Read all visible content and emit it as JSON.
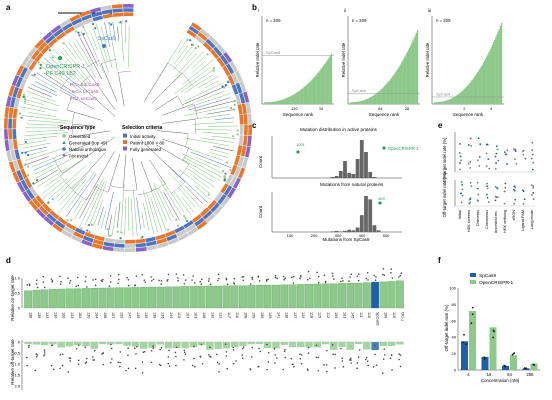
{
  "panel_letters": {
    "a": "a",
    "b": "b",
    "c": "c",
    "d": "d",
    "e": "e",
    "f": "f"
  },
  "tree": {
    "labels": {
      "spcas9": "SpCas9",
      "opencrispr": "OpenCRISPR-1",
      "pf_cas": "PF C49 1B2",
      "pca_sacas9": "PCA sacCas9",
      "sca_brcas9": "SCA brCas9",
      "fca_sacas9": "FCA saCas9"
    },
    "legend_type_title": "Sequence type",
    "legend_types": [
      "Generated",
      "Generated (top 49)",
      "Natural orthologue",
      "Ancestral"
    ],
    "legend_crit_title": "Selection criteria",
    "legend_crit": [
      "Initial activity",
      "Patent 1800 < 80",
      "Fully generated"
    ],
    "colors": {
      "generated": "#8dc98a",
      "top": "#2e9b57",
      "natural": "#3f79c3",
      "ancestral": "#a45fb8",
      "ring_orange": "#e8772e",
      "ring_blue": "#4e75c2",
      "ring_grey": "#c9c9c9",
      "ring_purple": "#8a63c6"
    }
  },
  "panel_b": {
    "ylabel": "Relative Indel rate",
    "xlabel": "Sequence rank",
    "subplots": [
      {
        "roman": "i",
        "n": "n = 209",
        "ref": "SpCas9",
        "ticks": [
          "120",
          "10"
        ],
        "refLevel": 0.55,
        "rise": 0.55
      },
      {
        "roman": "ii",
        "n": "n = 209",
        "ref": "SpCas9",
        "ticks": [
          "64",
          "28"
        ],
        "refLevel": 0.12,
        "rise": 0.82
      },
      {
        "roman": "iii",
        "n": "n = 209",
        "ref": "SpCas9",
        "ticks": [
          "2",
          "4"
        ],
        "refLevel": 0.08,
        "rise": 0.9
      }
    ]
  },
  "panel_c": {
    "top_title": "Mutation distribution in active proteins",
    "top_peak_label": "OpenCRISPR-1",
    "top_marker": "1001",
    "bottom_title": "Mutations from natural proteins",
    "bottom_marker": "403",
    "ylabel": "Count",
    "xlabel": "Mutations from SpCas9",
    "xticks": [
      "100",
      "200",
      "300",
      "400",
      "500"
    ],
    "top_bars": [
      2,
      4,
      14,
      34,
      10,
      8,
      38,
      76,
      52,
      12,
      2
    ],
    "bottom_bars": [
      1,
      2,
      1,
      2,
      4,
      3,
      8,
      30,
      64,
      58,
      12,
      3
    ]
  },
  "panel_e": {
    "ylabel_top": "On-target indel rate (%)",
    "ylabel_bottom": "Off-target indel rate (%)",
    "categories": [
      "Initial",
      "HEK screens",
      "Chimeras",
      "Consensus",
      "Ancestral rec.",
      "HEK ortholog",
      "sRGN",
      "Ligand-PAM",
      "Lang.mode"
    ]
  },
  "panel_d": {
    "ylabel_top": "Relative on-target rate",
    "ylabel_bottom": "Relative off-target rate",
    "labels": [
      "168",
      "139",
      "133",
      "130",
      "100",
      "143",
      "162",
      "120",
      "104",
      "158",
      "157",
      "152",
      "147",
      "146",
      "135",
      "128",
      "126",
      "144",
      "113",
      "107",
      "103",
      "148",
      "132",
      "122",
      "117",
      "116",
      "108",
      "159",
      "155",
      "149",
      "141",
      "138",
      "127",
      "124",
      "118",
      "115",
      "112",
      "105",
      "163",
      "145",
      "111",
      "110",
      "SpCas9",
      "109",
      "115",
      "OC-1"
    ],
    "values": [
      0.86,
      0.9,
      0.92,
      0.94,
      0.95,
      0.96,
      0.97,
      0.98,
      0.99,
      1.0,
      1.01,
      1.02,
      1.02,
      1.03,
      1.04,
      1.05,
      1.05,
      1.06,
      1.07,
      1.08,
      1.08,
      1.09,
      1.1,
      1.1,
      1.11,
      1.12,
      1.12,
      1.13,
      1.14,
      1.15,
      1.15,
      1.16,
      1.17,
      1.18,
      1.19,
      1.2,
      1.21,
      1.22,
      1.23,
      1.24,
      1.25,
      1.27,
      1.3,
      1.31,
      1.33,
      1.36
    ],
    "ticks_top": [
      "1.0",
      "0.5",
      "0"
    ],
    "ticks_bottom": [
      "0",
      "0.5",
      "1.0",
      "1.5",
      "2.0"
    ]
  },
  "panel_f": {
    "legend": [
      "SpCas9",
      "OpenCRISPR-1"
    ],
    "ylabel": "Off-target indel rate (%)",
    "xlabel": "Concentration (nM)",
    "categories": [
      "4",
      "16",
      "64",
      "256"
    ],
    "yticks": [
      "100",
      "80",
      "60",
      "40",
      "20",
      "0"
    ],
    "spcas9": [
      35,
      16,
      5,
      2
    ],
    "opencrispr": [
      72,
      52,
      18,
      8
    ],
    "colors": {
      "spcas9": "#1f5fa8",
      "opencrispr": "#8dc98a"
    }
  }
}
